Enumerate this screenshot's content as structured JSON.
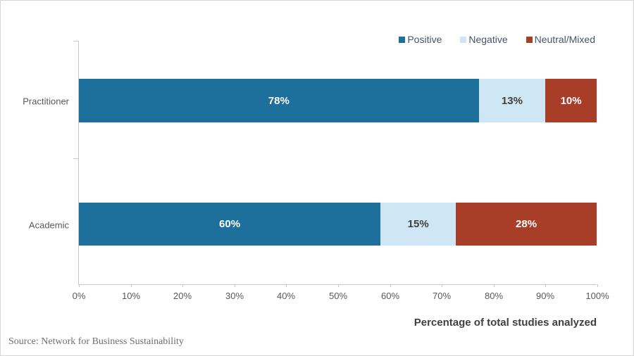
{
  "chart_data": {
    "type": "bar",
    "orientation": "horizontal",
    "stacked": true,
    "normalized_to_full_width": true,
    "categories": [
      "Practitioner",
      "Academic"
    ],
    "series": [
      {
        "name": "Positive",
        "values": [
          78,
          60
        ],
        "color": "#1d6f9c",
        "label_color": "#ffffff"
      },
      {
        "name": "Negative",
        "values": [
          13,
          15
        ],
        "color": "#cfe6f4",
        "label_color": "#3f3f3f"
      },
      {
        "name": "Neutral/Mixed",
        "values": [
          10,
          28
        ],
        "color": "#a83d28",
        "label_color": "#ffffff"
      }
    ],
    "value_suffix": "%",
    "title": "",
    "xlabel": "Percentage of total studies analyzed",
    "ylabel": "",
    "xlim": [
      0,
      100
    ],
    "x_tick_labels": [
      "0%",
      "10%",
      "20%",
      "30%",
      "40%",
      "50%",
      "60%",
      "70%",
      "80%",
      "90%",
      "100%"
    ],
    "grid": false,
    "legend_position": "top-right"
  },
  "source": {
    "text": "Source: Network for Business Sustainability"
  },
  "colors": {
    "axis_line": "#c7c7c7",
    "tick_label": "#595959",
    "category_label": "#595959",
    "axis_title": "#404040",
    "legend_text": "#44546a",
    "source_text": "#6d6d6d",
    "canvas_border": "#d6d6d6",
    "background": "#ffffff"
  }
}
